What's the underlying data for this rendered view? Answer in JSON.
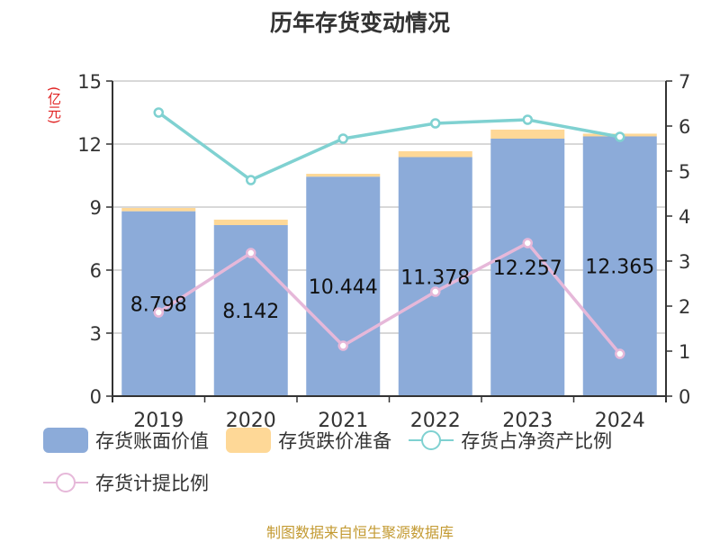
{
  "title": "历年存货变动情况",
  "unit_label": "(亿元)",
  "source": "制图数据来自恒生聚源数据库",
  "colors": {
    "book_value": "#8cabd9",
    "provision": "#fed897",
    "ratio_net_assets": "#7fd1d1",
    "provision_ratio": "#e6b8d9",
    "axis": "#333333",
    "grid": "#cccccc",
    "source": "#c39a32"
  },
  "legend": [
    {
      "label": "存货账面价值",
      "type": "bar",
      "color": "#8cabd9"
    },
    {
      "label": "存货跌价准备",
      "type": "bar",
      "color": "#fed897"
    },
    {
      "label": "存货占净资产比例",
      "type": "line",
      "color": "#7fd1d1"
    },
    {
      "label": "存货计提比例",
      "type": "line",
      "color": "#e6b8d9"
    }
  ],
  "chart_data": {
    "type": "bar",
    "title": "历年存货变动情况",
    "categories": [
      "2019",
      "2020",
      "2021",
      "2022",
      "2023",
      "2024"
    ],
    "series": [
      {
        "name": "存货账面价值",
        "type": "bar",
        "stack": "inv",
        "axis": "left",
        "values": [
          8.798,
          8.142,
          10.444,
          11.378,
          12.257,
          12.365
        ],
        "labels": [
          "8.798",
          "8.142",
          "10.444",
          "11.378",
          "12.257",
          "12.365"
        ]
      },
      {
        "name": "存货跌价准备",
        "type": "bar",
        "stack": "inv",
        "axis": "left",
        "values": [
          0.16,
          0.26,
          0.14,
          0.28,
          0.43,
          0.13
        ]
      },
      {
        "name": "存货占净资产比例",
        "type": "line",
        "axis": "right",
        "values": [
          6.3,
          4.8,
          5.72,
          6.06,
          6.14,
          5.76
        ]
      },
      {
        "name": "存货计提比例",
        "type": "line",
        "axis": "right",
        "values": [
          1.86,
          3.18,
          1.12,
          2.32,
          3.4,
          0.94
        ]
      }
    ],
    "ylabel": "(亿元)",
    "ylim": [
      0,
      15
    ],
    "yticks": [
      0,
      3,
      6,
      9,
      12,
      15
    ],
    "y2lim": [
      0,
      7
    ],
    "y2ticks": [
      0,
      1,
      2,
      3,
      4,
      5,
      6,
      7
    ],
    "grid": true,
    "legend_position": "bottom"
  }
}
